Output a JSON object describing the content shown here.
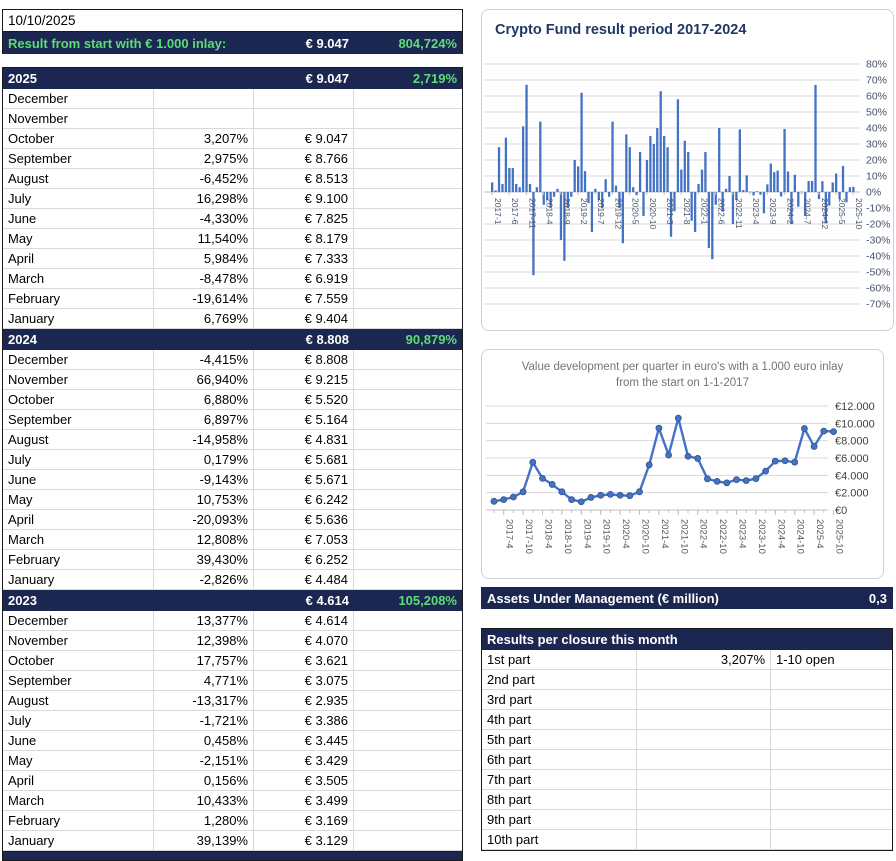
{
  "report": {
    "date": "10/10/2025"
  },
  "summary": {
    "label": "Result from start with € 1.000 inlay:",
    "value": "€ 9.047",
    "pct": "804,724%"
  },
  "years": [
    {
      "year": "2025",
      "value": "€ 9.047",
      "pct": "2,719%",
      "months": [
        {
          "name": "December",
          "pct": "",
          "value": ""
        },
        {
          "name": "November",
          "pct": "",
          "value": ""
        },
        {
          "name": "October",
          "pct": "3,207%",
          "value": "€ 9.047"
        },
        {
          "name": "September",
          "pct": "2,975%",
          "value": "€ 8.766"
        },
        {
          "name": "August",
          "pct": "-6,452%",
          "value": "€ 8.513"
        },
        {
          "name": "July",
          "pct": "16,298%",
          "value": "€ 9.100"
        },
        {
          "name": "June",
          "pct": "-4,330%",
          "value": "€ 7.825"
        },
        {
          "name": "May",
          "pct": "11,540%",
          "value": "€ 8.179"
        },
        {
          "name": "April",
          "pct": "5,984%",
          "value": "€ 7.333"
        },
        {
          "name": "March",
          "pct": "-8,478%",
          "value": "€ 6.919"
        },
        {
          "name": "February",
          "pct": "-19,614%",
          "value": "€ 7.559"
        },
        {
          "name": "January",
          "pct": "6,769%",
          "value": "€ 9.404"
        }
      ]
    },
    {
      "year": "2024",
      "value": "€ 8.808",
      "pct": "90,879%",
      "months": [
        {
          "name": "December",
          "pct": "-4,415%",
          "value": "€ 8.808"
        },
        {
          "name": "November",
          "pct": "66,940%",
          "value": "€ 9.215"
        },
        {
          "name": "October",
          "pct": "6,880%",
          "value": "€ 5.520"
        },
        {
          "name": "September",
          "pct": "6,897%",
          "value": "€ 5.164"
        },
        {
          "name": "August",
          "pct": "-14,958%",
          "value": "€ 4.831"
        },
        {
          "name": "July",
          "pct": "0,179%",
          "value": "€ 5.681"
        },
        {
          "name": "June",
          "pct": "-9,143%",
          "value": "€ 5.671"
        },
        {
          "name": "May",
          "pct": "10,753%",
          "value": "€ 6.242"
        },
        {
          "name": "April",
          "pct": "-20,093%",
          "value": "€ 5.636"
        },
        {
          "name": "March",
          "pct": "12,808%",
          "value": "€ 7.053"
        },
        {
          "name": "February",
          "pct": "39,430%",
          "value": "€ 6.252"
        },
        {
          "name": "January",
          "pct": "-2,826%",
          "value": "€ 4.484"
        }
      ]
    },
    {
      "year": "2023",
      "value": "€ 4.614",
      "pct": "105,208%",
      "months": [
        {
          "name": "December",
          "pct": "13,377%",
          "value": "€ 4.614"
        },
        {
          "name": "November",
          "pct": "12,398%",
          "value": "€ 4.070"
        },
        {
          "name": "October",
          "pct": "17,757%",
          "value": "€ 3.621"
        },
        {
          "name": "September",
          "pct": "4,771%",
          "value": "€ 3.075"
        },
        {
          "name": "August",
          "pct": "-13,317%",
          "value": "€ 2.935"
        },
        {
          "name": "July",
          "pct": "-1,721%",
          "value": "€ 3.386"
        },
        {
          "name": "June",
          "pct": "0,458%",
          "value": "€ 3.445"
        },
        {
          "name": "May",
          "pct": "-2,151%",
          "value": "€ 3.429"
        },
        {
          "name": "April",
          "pct": "0,156%",
          "value": "€ 3.505"
        },
        {
          "name": "March",
          "pct": "10,433%",
          "value": "€ 3.499"
        },
        {
          "name": "February",
          "pct": "1,280%",
          "value": "€ 3.169"
        },
        {
          "name": "January",
          "pct": "39,139%",
          "value": "€ 3.129"
        }
      ]
    }
  ],
  "aum": {
    "label": "Assets Under Management (€ million)",
    "value": "0,3"
  },
  "closures": {
    "title": "Results per closure this month",
    "rows": [
      {
        "label": "1st part",
        "pct": "3,207%",
        "note": "1-10 open"
      },
      {
        "label": "2nd part",
        "pct": "",
        "note": ""
      },
      {
        "label": "3rd part",
        "pct": "",
        "note": ""
      },
      {
        "label": "4th part",
        "pct": "",
        "note": ""
      },
      {
        "label": "5th part",
        "pct": "",
        "note": ""
      },
      {
        "label": "6th part",
        "pct": "",
        "note": ""
      },
      {
        "label": "7th part",
        "pct": "",
        "note": ""
      },
      {
        "label": "8th part",
        "pct": "",
        "note": ""
      },
      {
        "label": "9th part",
        "pct": "",
        "note": ""
      },
      {
        "label": "10th part",
        "pct": "",
        "note": ""
      }
    ]
  },
  "colors": {
    "navy": "#1b2750",
    "green": "#5ddd78",
    "chart_blue": "#4472c4",
    "bar_axis_label": "#44546a",
    "title_navy": "#1f3864",
    "line_title_gray": "#757575",
    "grid_gray": "#d9d9d9"
  },
  "chart_data": [
    {
      "type": "bar",
      "title": "Crypto Fund result period 2017-2024",
      "x_start": "2017-1",
      "x_end": "2025-10",
      "tick_every": 5,
      "x_tick_labels": [
        "2017-1",
        "2017-6",
        "2017-11",
        "2018-4",
        "2018-9",
        "2019-2",
        "2019-7",
        "2019-12",
        "2020-5",
        "2020-10",
        "2021-3",
        "2021-8",
        "2022-1",
        "2022-6",
        "2022-11",
        "2023-4",
        "2023-9",
        "2024-2",
        "2024-7",
        "2024-12",
        "2025-5",
        "2025-10"
      ],
      "y_tick_labels": [
        "80%",
        "70%",
        "60%",
        "50%",
        "40%",
        "30%",
        "20%",
        "10%",
        "0%",
        "-10%",
        "-20%",
        "-30%",
        "-40%",
        "-50%",
        "-60%",
        "-70%"
      ],
      "ylim": [
        -70,
        80
      ],
      "grid": true,
      "legend": "none",
      "axis_side": "right",
      "values": [
        6,
        1,
        28,
        5,
        34,
        15,
        15,
        5,
        3,
        41,
        67,
        5,
        -52,
        3,
        44,
        -8,
        -5,
        -10,
        -3,
        2,
        -30,
        -43,
        -10,
        -3,
        20,
        16,
        62,
        13,
        -7,
        -25,
        2,
        -5,
        -10,
        8,
        -3,
        44,
        4,
        -10,
        -32,
        36,
        28,
        3,
        -2,
        25,
        -15,
        20,
        35,
        30,
        40,
        63,
        35,
        28,
        -28,
        -12,
        58,
        14,
        32,
        25,
        -18,
        -25,
        5,
        14,
        25,
        -35,
        -42,
        -8,
        40,
        -12,
        2,
        10,
        -20,
        -5,
        39.139,
        1.28,
        10.433,
        0.156,
        -2.151,
        0.458,
        -1.721,
        -13.317,
        4.771,
        17.757,
        12.398,
        13.377,
        -2.826,
        39.43,
        12.808,
        -20.093,
        10.753,
        -9.143,
        0.179,
        -14.958,
        6.897,
        6.88,
        66.94,
        -4.415,
        6.769,
        -19.614,
        -8.478,
        5.984,
        11.54,
        -4.33,
        16.298,
        -6.452,
        2.975,
        3.207
      ]
    },
    {
      "type": "line",
      "title": "Value development per quarter in euro's with a 1.000 euro inlay from the start on 1-1-2017",
      "x_start": "2017-1",
      "x_end": "2025-10",
      "tick_every": 2,
      "first_label_index": 1,
      "x_tick_labels": [
        "2017-4",
        "2017-10",
        "2018-4",
        "2018-10",
        "2019-4",
        "2019-10",
        "2020-4",
        "2020-10",
        "2021-4",
        "2021-10",
        "2022-4",
        "2022-10",
        "2023-4",
        "2023-10",
        "2024-4",
        "2024-10",
        "2025-4",
        "2025-10"
      ],
      "y_tick_labels": [
        "€12.000",
        "€10.000",
        "€8.000",
        "€6.000",
        "€4.000",
        "€2.000",
        "€0"
      ],
      "ylim": [
        0,
        12000
      ],
      "grid": true,
      "legend": "none",
      "axis_side": "right",
      "values": [
        1000,
        1200,
        1500,
        2100,
        5500,
        3650,
        2950,
        2100,
        1200,
        950,
        1450,
        1700,
        1800,
        1700,
        1650,
        2100,
        5200,
        9450,
        6350,
        10600,
        6200,
        5950,
        3600,
        3300,
        3129,
        3505,
        3386,
        3621,
        4484,
        5636,
        5681,
        5520,
        9404,
        7333,
        9100,
        9047
      ]
    }
  ]
}
